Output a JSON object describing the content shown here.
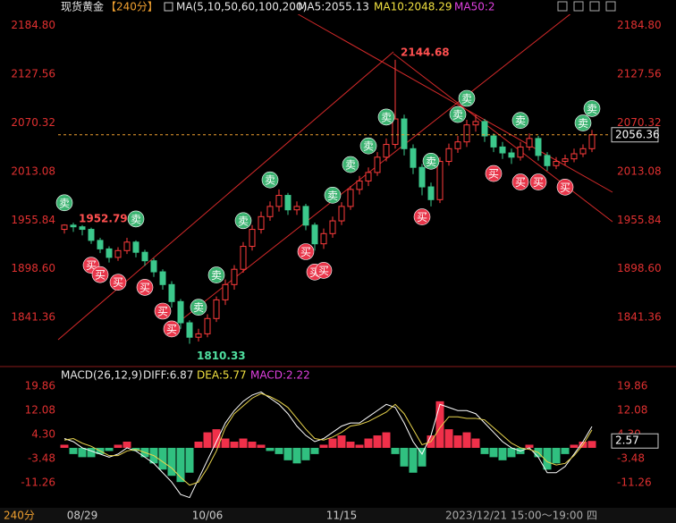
{
  "chart_data": [
    {
      "type": "candlestick",
      "symbol": "现货黄金",
      "period": "【240分】",
      "ma_title": "MA(5,10,50,60,100,200)",
      "ma5": "MA5:2055.13",
      "ma10": "MA10:2048.29",
      "ma50": "MA50:2",
      "categories": [
        null,
        null,
        "08/29",
        null,
        null,
        null,
        null,
        null,
        null,
        null,
        null,
        null,
        null,
        null,
        null,
        null,
        "10/06",
        null,
        null,
        null,
        null,
        null,
        null,
        null,
        null,
        null,
        null,
        null,
        null,
        null,
        null,
        "11/15",
        null,
        null,
        null,
        null,
        null,
        null,
        null,
        null,
        null,
        null,
        null,
        null,
        null,
        null,
        null,
        null,
        null,
        null,
        null,
        null,
        null,
        null,
        null,
        null,
        null,
        null,
        null,
        null
      ],
      "open": [
        1945,
        1950,
        1948,
        1945,
        1932,
        1922,
        1912,
        1920,
        1930,
        1918,
        1908,
        1895,
        1880,
        1860,
        1835,
        1818,
        1822,
        1840,
        1862,
        1880,
        1898,
        1925,
        1945,
        1960,
        1972,
        1985,
        1968,
        1972,
        1950,
        1928,
        1940,
        1955,
        1972,
        1992,
        2002,
        2012,
        2030,
        2045,
        2075,
        2040,
        2018,
        1995,
        1980,
        2025,
        2040,
        2048,
        2068,
        2072,
        2055,
        2042,
        2035,
        2030,
        2042,
        2052,
        2032,
        2020,
        2025,
        2028,
        2034,
        2040
      ],
      "high": [
        1951,
        1952.79,
        1950,
        1947,
        1935,
        1925,
        1924,
        1935,
        1932,
        1921,
        1911,
        1898,
        1884,
        1863,
        1838,
        1828,
        1845,
        1866,
        1886,
        1903,
        1930,
        1950,
        1966,
        1978,
        1992,
        1988,
        1978,
        1975,
        1953,
        1946,
        1960,
        1977,
        1996,
        2008,
        2018,
        2036,
        2052,
        2144.68,
        2080,
        2045,
        2022,
        2000,
        2030,
        2046,
        2055,
        2074,
        2080,
        2075,
        2058,
        2048,
        2040,
        2048,
        2058,
        2055,
        2036,
        2030,
        2033,
        2040,
        2045,
        2062
      ],
      "low": [
        1940,
        1942,
        1938,
        1928,
        1917,
        1906,
        1908,
        1916,
        1912,
        1902,
        1889,
        1874,
        1853,
        1828,
        1810.33,
        1813,
        1818,
        1836,
        1856,
        1874,
        1894,
        1920,
        1940,
        1955,
        1966,
        1962,
        1962,
        1944,
        1920,
        1922,
        1935,
        1950,
        1968,
        1986,
        1996,
        2008,
        2025,
        2040,
        2032,
        2010,
        1985,
        1972,
        1976,
        2020,
        2035,
        2042,
        2060,
        2048,
        2036,
        2028,
        2022,
        2026,
        2038,
        2026,
        2014,
        2016,
        2020,
        2024,
        2030,
        2036
      ],
      "close": [
        1950,
        1948,
        1945,
        1932,
        1922,
        1912,
        1920,
        1930,
        1918,
        1908,
        1895,
        1880,
        1860,
        1835,
        1818,
        1822,
        1840,
        1862,
        1880,
        1898,
        1925,
        1945,
        1960,
        1972,
        1985,
        1968,
        1972,
        1950,
        1928,
        1940,
        1955,
        1972,
        1992,
        2002,
        2012,
        2030,
        2045,
        2075,
        2040,
        2018,
        1995,
        1980,
        2025,
        2040,
        2048,
        2068,
        2072,
        2055,
        2042,
        2035,
        2030,
        2042,
        2052,
        2032,
        2020,
        2025,
        2028,
        2034,
        2040,
        2056.36
      ],
      "up_color": "#ff3c3c",
      "down_color": "#3cc88c",
      "ylim": [
        1794,
        2194
      ],
      "yticks": [
        {
          "value": 1841.36,
          "label": "1841.36"
        },
        {
          "value": 1898.6,
          "label": "1898.60"
        },
        {
          "value": 1955.84,
          "label": "1955.84"
        },
        {
          "value": 2013.08,
          "label": "2013.08"
        },
        {
          "value": 2070.32,
          "label": "2070.32"
        },
        {
          "value": 2127.56,
          "label": "2127.56"
        },
        {
          "value": 2184.8,
          "label": "2184.80"
        }
      ],
      "signals": [
        {
          "label": "卖",
          "index": 0
        },
        {
          "label": "买",
          "index": 3
        },
        {
          "label": "买",
          "index": 4
        },
        {
          "label": "买",
          "index": 6
        },
        {
          "label": "卖",
          "index": 8
        },
        {
          "label": "买",
          "index": 9
        },
        {
          "label": "买",
          "index": 11
        },
        {
          "label": "买",
          "index": 12
        },
        {
          "label": "卖",
          "index": 15
        },
        {
          "label": "卖",
          "index": 17
        },
        {
          "label": "卖",
          "index": 20
        },
        {
          "label": "卖",
          "index": 23
        },
        {
          "label": "买",
          "index": 27
        },
        {
          "label": "买",
          "index": 28
        },
        {
          "label": "买",
          "index": 29
        },
        {
          "label": "卖",
          "index": 30
        },
        {
          "label": "卖",
          "index": 32
        },
        {
          "label": "卖",
          "index": 34
        },
        {
          "label": "卖",
          "index": 36
        },
        {
          "label": "买",
          "index": 40
        },
        {
          "label": "卖",
          "index": 41
        },
        {
          "label": "卖",
          "index": 44
        },
        {
          "label": "卖",
          "index": 45
        },
        {
          "label": "买",
          "index": 48
        },
        {
          "label": "卖",
          "index": 51
        },
        {
          "label": "买",
          "index": 51
        },
        {
          "label": "买",
          "index": 53
        },
        {
          "label": "买",
          "index": 56
        },
        {
          "label": "卖",
          "index": 58
        },
        {
          "label": "卖",
          "index": 59
        }
      ]
    },
    {
      "type": "macd",
      "title": "MACD(26,12,9)",
      "diff_label": "DIFF:6.87",
      "dea_label": "DEA:5.77",
      "macd_label": "MACD:2.22",
      "cursor_value": "2.57",
      "period_label": "240分",
      "status_time": "2023/12/21 15:00～19:00 四",
      "series": [
        {
          "name": "DIFF",
          "color": "#ffffff",
          "values": [
            3,
            2,
            0,
            -1,
            -2,
            -3,
            -2,
            0,
            -1,
            -3,
            -5,
            -8,
            -11,
            -15,
            -16,
            -10,
            -4,
            2,
            8,
            12,
            15,
            17,
            18,
            16,
            14,
            11,
            7,
            4,
            2,
            3,
            5,
            7,
            8,
            8,
            10,
            12,
            14,
            13,
            8,
            2,
            -2,
            4,
            14,
            13,
            12,
            12,
            11,
            8,
            5,
            2,
            0,
            -1,
            0,
            -3,
            -8,
            -8,
            -6,
            -2,
            2,
            6.87
          ]
        },
        {
          "name": "DEA",
          "color": "#e8d44d",
          "values": [
            2.5,
            3,
            1.5,
            0.5,
            -1,
            -2.5,
            -2.5,
            -1,
            -0.5,
            -1.5,
            -2.5,
            -4.5,
            -6.5,
            -9.5,
            -12,
            -11,
            -6.5,
            -1,
            6.5,
            11,
            13.5,
            16,
            17.5,
            16.5,
            15,
            13,
            9.5,
            6,
            3,
            2.5,
            3.5,
            5,
            7,
            7.5,
            8.5,
            10,
            11.5,
            14,
            11,
            6,
            1,
            2,
            6.5,
            10,
            10,
            9.5,
            9.5,
            9,
            6.5,
            4,
            1.5,
            0,
            -0.5,
            -1.5,
            -4.5,
            -5.5,
            -5,
            -2.5,
            1,
            5.77
          ]
        }
      ],
      "values": [
        1,
        -2,
        -3,
        -3,
        -2,
        -1,
        1,
        2,
        -1,
        -3,
        -5,
        -7,
        -9,
        -11,
        -8,
        2,
        5,
        6,
        3,
        2,
        3,
        2,
        1,
        -1,
        -2,
        -4,
        -5,
        -4,
        -2,
        1,
        3,
        4,
        2,
        1,
        3,
        4,
        5,
        -2,
        -6,
        -8,
        -6,
        4,
        15,
        6,
        4,
        5,
        3,
        -2,
        -3,
        -4,
        -3,
        -2,
        1,
        -3,
        -7,
        -5,
        -2,
        1,
        2,
        2.22
      ],
      "ylim": [
        -19.3,
        23.3
      ],
      "yticks": [
        -11.26,
        -3.48,
        {
          "value": 4.3,
          "label": "4.30"
        },
        12.08,
        19.86
      ]
    }
  ]
}
